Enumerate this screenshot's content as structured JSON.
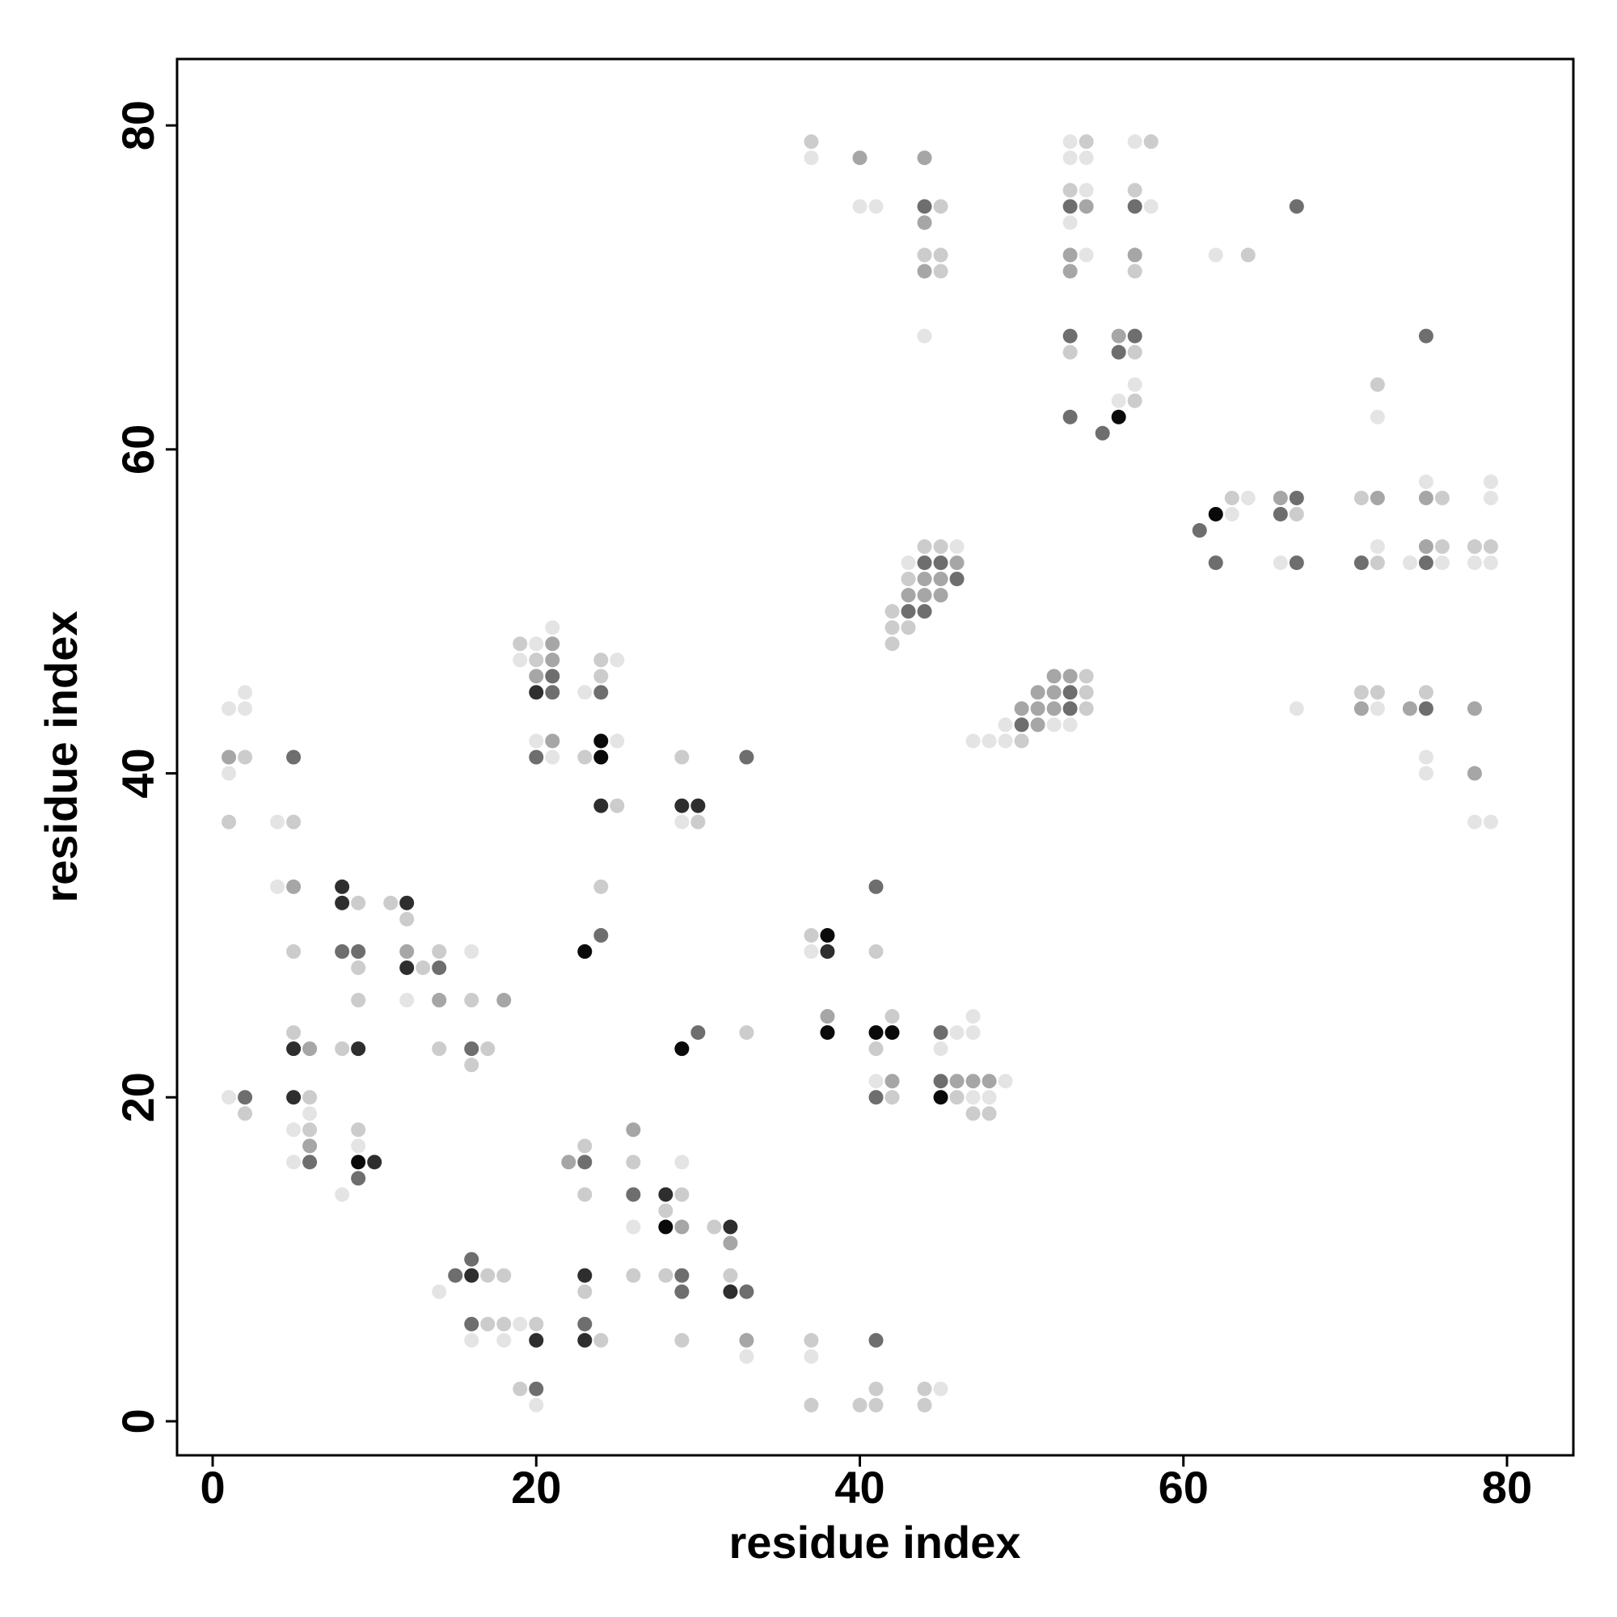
{
  "chart_data": {
    "type": "scatter",
    "x_label": "residue index",
    "y_label": "residue index",
    "xlim": [
      -2.2,
      84.1
    ],
    "ylim": [
      -2.1,
      84.1
    ],
    "xticks": [
      0,
      20,
      40,
      60,
      80
    ],
    "yticks": [
      0,
      20,
      40,
      60,
      80
    ],
    "series": [
      {
        "color": "#e4e4e4",
        "x": [
          53,
          57,
          37,
          53,
          54,
          54,
          40,
          41,
          58,
          53,
          54,
          62,
          44,
          57,
          56,
          72,
          75,
          79,
          64,
          79,
          63,
          46,
          72,
          43,
          66,
          74,
          76,
          78,
          79,
          21,
          20,
          19,
          25,
          2,
          23,
          1,
          2,
          67,
          72,
          49,
          52,
          53,
          20,
          25,
          47,
          48,
          49,
          21,
          75,
          1,
          75,
          4,
          29,
          78,
          79,
          4,
          16,
          37,
          12,
          47,
          46,
          47,
          45,
          41,
          49,
          1,
          47,
          48,
          6,
          5,
          9,
          5,
          29,
          8,
          26,
          14,
          19,
          16,
          18,
          33,
          37,
          45,
          20
        ],
        "y": [
          79,
          79,
          78,
          78,
          78,
          76,
          75,
          75,
          75,
          74,
          72,
          72,
          67,
          64,
          63,
          62,
          58,
          58,
          57,
          57,
          56,
          54,
          54,
          53,
          53,
          53,
          53,
          53,
          53,
          49,
          48,
          47,
          47,
          45,
          45,
          44,
          44,
          44,
          44,
          43,
          43,
          43,
          42,
          42,
          42,
          42,
          42,
          41,
          41,
          40,
          40,
          37,
          37,
          37,
          37,
          33,
          29,
          29,
          26,
          25,
          24,
          24,
          23,
          21,
          21,
          20,
          20,
          20,
          19,
          18,
          17,
          16,
          16,
          14,
          12,
          8,
          6,
          5,
          5,
          4,
          4,
          2,
          1
        ]
      },
      {
        "color": "#cccccc",
        "x": [
          37,
          54,
          58,
          53,
          57,
          45,
          44,
          45,
          64,
          45,
          57,
          53,
          57,
          72,
          57,
          63,
          71,
          76,
          67,
          44,
          45,
          76,
          78,
          79,
          72,
          43,
          42,
          42,
          43,
          42,
          19,
          20,
          24,
          24,
          54,
          54,
          71,
          72,
          75,
          54,
          50,
          2,
          23,
          29,
          25,
          1,
          5,
          30,
          24,
          9,
          11,
          12,
          37,
          5,
          14,
          41,
          9,
          13,
          9,
          16,
          42,
          5,
          33,
          8,
          14,
          17,
          41,
          16,
          6,
          42,
          46,
          2,
          47,
          48,
          6,
          9,
          23,
          26,
          23,
          29,
          28,
          31,
          17,
          18,
          26,
          28,
          32,
          23,
          17,
          18,
          20,
          24,
          29,
          37,
          19,
          41,
          44,
          37,
          40,
          41,
          44
        ],
        "y": [
          79,
          79,
          79,
          76,
          76,
          75,
          72,
          72,
          72,
          71,
          71,
          66,
          66,
          64,
          63,
          57,
          57,
          57,
          56,
          54,
          54,
          54,
          54,
          54,
          53,
          52,
          50,
          49,
          49,
          48,
          48,
          47,
          47,
          46,
          46,
          45,
          45,
          45,
          45,
          44,
          42,
          41,
          41,
          41,
          38,
          37,
          37,
          37,
          33,
          32,
          32,
          31,
          30,
          29,
          29,
          29,
          28,
          28,
          26,
          26,
          25,
          24,
          24,
          23,
          23,
          23,
          23,
          22,
          20,
          20,
          20,
          19,
          19,
          19,
          18,
          18,
          17,
          16,
          14,
          14,
          13,
          12,
          9,
          9,
          9,
          9,
          9,
          8,
          6,
          6,
          6,
          5,
          5,
          5,
          2,
          2,
          2,
          1,
          1,
          1,
          1
        ]
      },
      {
        "color": "#a6a6a6",
        "x": [
          40,
          44,
          54,
          44,
          53,
          57,
          44,
          53,
          56,
          66,
          72,
          75,
          75,
          46,
          44,
          45,
          43,
          44,
          45,
          21,
          21,
          20,
          53,
          52,
          51,
          52,
          50,
          51,
          52,
          71,
          74,
          78,
          51,
          21,
          1,
          78,
          5,
          12,
          14,
          18,
          38,
          6,
          42,
          46,
          47,
          48,
          26,
          6,
          22,
          29,
          32,
          33
        ],
        "y": [
          78,
          78,
          75,
          74,
          72,
          72,
          71,
          71,
          67,
          57,
          57,
          57,
          54,
          53,
          52,
          52,
          51,
          51,
          51,
          48,
          47,
          46,
          46,
          46,
          45,
          45,
          44,
          44,
          44,
          44,
          44,
          44,
          43,
          42,
          41,
          40,
          33,
          29,
          26,
          26,
          25,
          23,
          21,
          21,
          21,
          21,
          18,
          17,
          16,
          12,
          11,
          5
        ]
      },
      {
        "color": "#6e6e6e",
        "x": [
          44,
          53,
          57,
          67,
          53,
          57,
          75,
          56,
          53,
          55,
          67,
          66,
          61,
          44,
          45,
          62,
          67,
          71,
          75,
          46,
          43,
          44,
          21,
          21,
          24,
          53,
          53,
          75,
          50,
          5,
          20,
          33,
          41,
          24,
          8,
          9,
          14,
          30,
          45,
          16,
          45,
          2,
          41,
          6,
          23,
          9,
          26,
          16,
          15,
          29,
          29,
          33,
          16,
          23,
          41,
          20
        ],
        "y": [
          75,
          75,
          75,
          75,
          67,
          67,
          67,
          66,
          62,
          61,
          57,
          56,
          55,
          53,
          53,
          53,
          53,
          53,
          53,
          52,
          50,
          50,
          46,
          45,
          45,
          45,
          44,
          44,
          43,
          41,
          41,
          41,
          33,
          30,
          29,
          29,
          28,
          24,
          24,
          23,
          21,
          20,
          20,
          16,
          16,
          15,
          14,
          10,
          9,
          9,
          8,
          8,
          6,
          6,
          5,
          2
        ]
      },
      {
        "color": "#2e2e2e",
        "x": [
          20,
          24,
          29,
          30,
          8,
          8,
          12,
          38,
          12,
          5,
          9,
          5,
          10,
          28,
          32,
          16,
          23,
          32,
          20,
          23
        ],
        "y": [
          45,
          38,
          38,
          38,
          33,
          32,
          32,
          29,
          28,
          23,
          23,
          20,
          16,
          14,
          12,
          9,
          9,
          8,
          5,
          5
        ]
      },
      {
        "color": "#0a0a0a",
        "x": [
          56,
          62,
          24,
          24,
          38,
          23,
          38,
          41,
          42,
          29,
          45,
          9,
          28
        ],
        "y": [
          62,
          56,
          42,
          41,
          30,
          29,
          24,
          24,
          24,
          23,
          20,
          16,
          12
        ]
      }
    ]
  }
}
